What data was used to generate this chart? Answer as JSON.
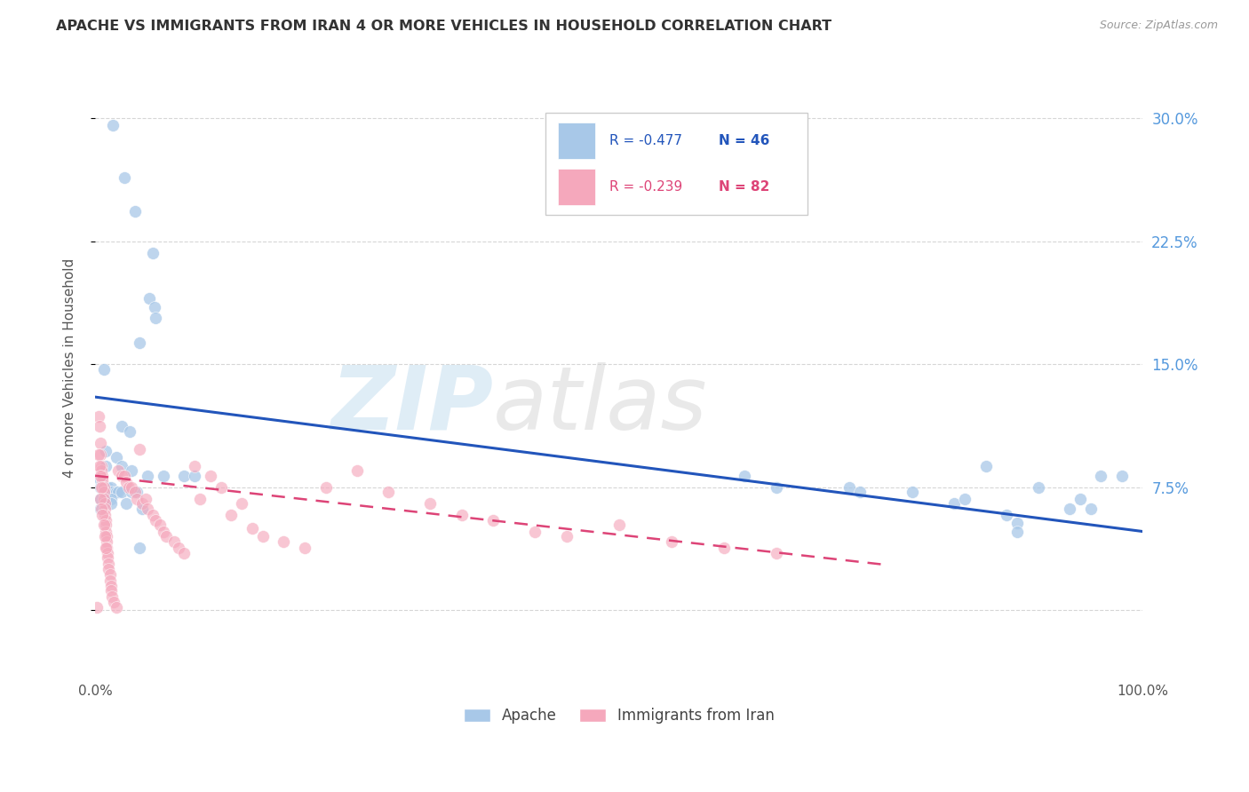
{
  "title": "APACHE VS IMMIGRANTS FROM IRAN 4 OR MORE VEHICLES IN HOUSEHOLD CORRELATION CHART",
  "source": "Source: ZipAtlas.com",
  "ylabel": "4 or more Vehicles in Household",
  "watermark_zip": "ZIP",
  "watermark_atlas": "atlas",
  "xlim": [
    0.0,
    1.0
  ],
  "ylim": [
    -0.04,
    0.335
  ],
  "yticks": [
    0.0,
    0.075,
    0.15,
    0.225,
    0.3
  ],
  "ytick_labels": [
    "",
    "7.5%",
    "15.0%",
    "22.5%",
    "30.0%"
  ],
  "xtick_labels": [
    "0.0%",
    "100.0%"
  ],
  "apache_R": "-0.477",
  "apache_N": "46",
  "iran_R": "-0.239",
  "iran_N": "82",
  "apache_color": "#a8c8e8",
  "iran_color": "#f5a8bc",
  "apache_line_color": "#2255bb",
  "iran_line_color": "#dd4477",
  "background_color": "#ffffff",
  "grid_color": "#cccccc",
  "apache_scatter": [
    [
      0.017,
      0.296
    ],
    [
      0.028,
      0.264
    ],
    [
      0.038,
      0.243
    ],
    [
      0.055,
      0.218
    ],
    [
      0.052,
      0.19
    ],
    [
      0.057,
      0.185
    ],
    [
      0.058,
      0.178
    ],
    [
      0.042,
      0.163
    ],
    [
      0.008,
      0.147
    ],
    [
      0.025,
      0.112
    ],
    [
      0.033,
      0.109
    ],
    [
      0.01,
      0.097
    ],
    [
      0.02,
      0.093
    ],
    [
      0.01,
      0.088
    ],
    [
      0.025,
      0.088
    ],
    [
      0.035,
      0.085
    ],
    [
      0.05,
      0.082
    ],
    [
      0.065,
      0.082
    ],
    [
      0.085,
      0.082
    ],
    [
      0.095,
      0.082
    ],
    [
      0.005,
      0.079
    ],
    [
      0.005,
      0.075
    ],
    [
      0.008,
      0.075
    ],
    [
      0.012,
      0.075
    ],
    [
      0.015,
      0.075
    ],
    [
      0.015,
      0.072
    ],
    [
      0.02,
      0.072
    ],
    [
      0.022,
      0.072
    ],
    [
      0.025,
      0.072
    ],
    [
      0.035,
      0.072
    ],
    [
      0.04,
      0.072
    ],
    [
      0.005,
      0.068
    ],
    [
      0.01,
      0.068
    ],
    [
      0.015,
      0.068
    ],
    [
      0.015,
      0.065
    ],
    [
      0.03,
      0.065
    ],
    [
      0.005,
      0.062
    ],
    [
      0.045,
      0.062
    ],
    [
      0.042,
      0.038
    ],
    [
      0.62,
      0.082
    ],
    [
      0.65,
      0.075
    ],
    [
      0.72,
      0.075
    ],
    [
      0.73,
      0.072
    ],
    [
      0.78,
      0.072
    ],
    [
      0.82,
      0.065
    ],
    [
      0.83,
      0.068
    ],
    [
      0.85,
      0.088
    ],
    [
      0.87,
      0.058
    ],
    [
      0.88,
      0.053
    ],
    [
      0.88,
      0.048
    ],
    [
      0.9,
      0.075
    ],
    [
      0.93,
      0.062
    ],
    [
      0.94,
      0.068
    ],
    [
      0.95,
      0.062
    ],
    [
      0.96,
      0.082
    ],
    [
      0.98,
      0.082
    ]
  ],
  "iran_scatter": [
    [
      0.003,
      0.118
    ],
    [
      0.004,
      0.112
    ],
    [
      0.005,
      0.102
    ],
    [
      0.005,
      0.095
    ],
    [
      0.006,
      0.088
    ],
    [
      0.006,
      0.085
    ],
    [
      0.007,
      0.082
    ],
    [
      0.007,
      0.079
    ],
    [
      0.007,
      0.075
    ],
    [
      0.008,
      0.075
    ],
    [
      0.008,
      0.072
    ],
    [
      0.008,
      0.068
    ],
    [
      0.009,
      0.065
    ],
    [
      0.009,
      0.062
    ],
    [
      0.009,
      0.058
    ],
    [
      0.01,
      0.055
    ],
    [
      0.01,
      0.052
    ],
    [
      0.01,
      0.048
    ],
    [
      0.011,
      0.045
    ],
    [
      0.011,
      0.042
    ],
    [
      0.011,
      0.038
    ],
    [
      0.012,
      0.035
    ],
    [
      0.012,
      0.032
    ],
    [
      0.013,
      0.028
    ],
    [
      0.013,
      0.025
    ],
    [
      0.014,
      0.022
    ],
    [
      0.014,
      0.018
    ],
    [
      0.015,
      0.015
    ],
    [
      0.015,
      0.012
    ],
    [
      0.016,
      0.008
    ],
    [
      0.018,
      0.005
    ],
    [
      0.02,
      0.002
    ],
    [
      0.002,
      0.002
    ],
    [
      0.022,
      0.085
    ],
    [
      0.025,
      0.082
    ],
    [
      0.028,
      0.082
    ],
    [
      0.03,
      0.078
    ],
    [
      0.032,
      0.075
    ],
    [
      0.035,
      0.075
    ],
    [
      0.038,
      0.072
    ],
    [
      0.04,
      0.068
    ],
    [
      0.042,
      0.098
    ],
    [
      0.045,
      0.065
    ],
    [
      0.048,
      0.068
    ],
    [
      0.05,
      0.062
    ],
    [
      0.055,
      0.058
    ],
    [
      0.058,
      0.055
    ],
    [
      0.062,
      0.052
    ],
    [
      0.065,
      0.048
    ],
    [
      0.068,
      0.045
    ],
    [
      0.075,
      0.042
    ],
    [
      0.08,
      0.038
    ],
    [
      0.085,
      0.035
    ],
    [
      0.095,
      0.088
    ],
    [
      0.1,
      0.068
    ],
    [
      0.11,
      0.082
    ],
    [
      0.12,
      0.075
    ],
    [
      0.13,
      0.058
    ],
    [
      0.14,
      0.065
    ],
    [
      0.15,
      0.05
    ],
    [
      0.16,
      0.045
    ],
    [
      0.18,
      0.042
    ],
    [
      0.2,
      0.038
    ],
    [
      0.22,
      0.075
    ],
    [
      0.25,
      0.085
    ],
    [
      0.28,
      0.072
    ],
    [
      0.32,
      0.065
    ],
    [
      0.35,
      0.058
    ],
    [
      0.38,
      0.055
    ],
    [
      0.42,
      0.048
    ],
    [
      0.45,
      0.045
    ],
    [
      0.5,
      0.052
    ],
    [
      0.55,
      0.042
    ],
    [
      0.6,
      0.038
    ],
    [
      0.65,
      0.035
    ],
    [
      0.003,
      0.095
    ],
    [
      0.004,
      0.088
    ],
    [
      0.005,
      0.082
    ],
    [
      0.006,
      0.075
    ],
    [
      0.005,
      0.068
    ],
    [
      0.006,
      0.062
    ],
    [
      0.007,
      0.058
    ],
    [
      0.008,
      0.052
    ],
    [
      0.009,
      0.045
    ],
    [
      0.01,
      0.038
    ]
  ],
  "apache_trend_x": [
    0.0,
    1.0
  ],
  "apache_trend_y": [
    0.13,
    0.048
  ],
  "iran_trend_x": [
    0.0,
    0.75
  ],
  "iran_trend_y": [
    0.082,
    0.028
  ]
}
